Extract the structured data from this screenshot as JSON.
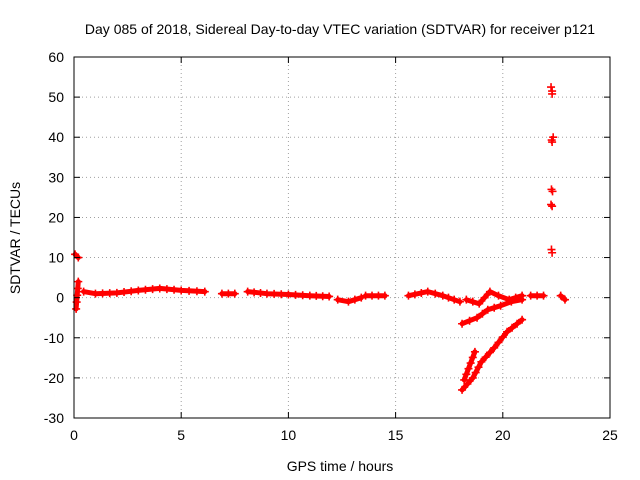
{
  "chart_data": {
    "type": "scatter",
    "title": "Day 085 of 2018, Sidereal Day-to-day VTEC variation (SDTVAR) for receiver p121",
    "xlabel": "GPS time / hours",
    "ylabel": "SDTVAR / TECUs",
    "xlim": [
      0,
      25
    ],
    "ylim": [
      -30,
      60
    ],
    "xticks": [
      0,
      5,
      10,
      15,
      20,
      25
    ],
    "yticks": [
      -30,
      -20,
      -10,
      0,
      10,
      20,
      30,
      40,
      50,
      60
    ],
    "grid": true,
    "legend": "none",
    "marker": "plus",
    "color": "#ff0000",
    "segments": [
      {
        "x": [
          0.05,
          0.2
        ],
        "y": [
          10.8,
          10.0
        ]
      },
      {
        "x": [
          0.1,
          0.2
        ],
        "y": [
          -2.8,
          4.0
        ]
      },
      {
        "x": [
          0.45,
          1.0,
          2.0,
          3.0,
          4.0,
          5.0,
          6.1
        ],
        "y": [
          1.5,
          1.0,
          1.2,
          1.8,
          2.3,
          1.8,
          1.5
        ]
      },
      {
        "x": [
          6.9,
          7.5
        ],
        "y": [
          1.0,
          1.0
        ]
      },
      {
        "x": [
          8.1,
          9.0,
          10.0,
          11.0,
          11.9
        ],
        "y": [
          1.5,
          1.0,
          0.8,
          0.5,
          0.3
        ]
      },
      {
        "x": [
          12.3,
          12.8,
          13.4
        ],
        "y": [
          -0.5,
          -1.0,
          0.0
        ]
      },
      {
        "x": [
          13.6,
          14.5
        ],
        "y": [
          0.5,
          0.5
        ]
      },
      {
        "x": [
          15.6,
          16.5,
          17.2,
          18.0
        ],
        "y": [
          0.5,
          1.5,
          0.5,
          -1.0
        ]
      },
      {
        "x": [
          18.3,
          18.9,
          19.4,
          19.8,
          20.3,
          20.9
        ],
        "y": [
          -0.5,
          -1.5,
          1.5,
          0.5,
          -0.5,
          0.5
        ]
      },
      {
        "x": [
          21.3,
          21.9
        ],
        "y": [
          0.5,
          0.5
        ]
      },
      {
        "x": [
          22.7,
          22.9
        ],
        "y": [
          0.5,
          -0.5
        ]
      },
      {
        "x": [
          18.1,
          18.8,
          19.3,
          19.9,
          20.4,
          20.9
        ],
        "y": [
          -6.5,
          -5.0,
          -3.0,
          -2.0,
          -1.0,
          -0.5
        ]
      },
      {
        "x": [
          18.1,
          18.6,
          19.0,
          19.6,
          20.2,
          20.9
        ],
        "y": [
          -23.0,
          -20.0,
          -16.0,
          -12.5,
          -8.5,
          -5.5
        ]
      },
      {
        "x": [
          18.2,
          18.7
        ],
        "y": [
          -20.5,
          -13.5
        ]
      }
    ],
    "points": [
      {
        "x": [
          22.25,
          22.3,
          22.3,
          22.35,
          22.28,
          22.3,
          22.27,
          22.32,
          22.25,
          22.3,
          22.27,
          22.3
        ],
        "y": [
          52.5,
          51.5,
          50.8,
          40.0,
          39.3,
          38.8,
          27.0,
          26.5,
          23.2,
          22.8,
          12.0,
          11.2
        ]
      }
    ]
  }
}
